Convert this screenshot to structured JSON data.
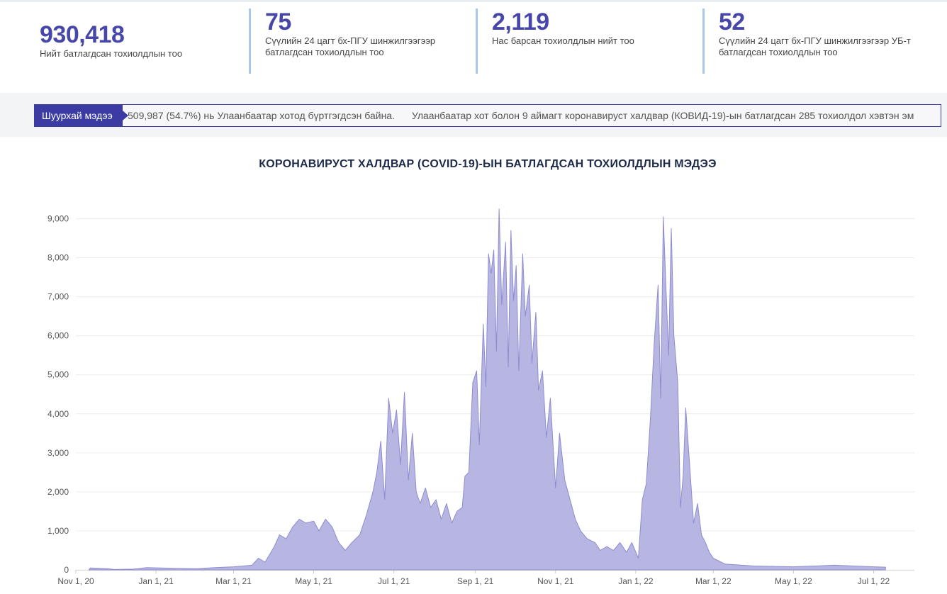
{
  "stats": [
    {
      "value": "930,418",
      "label": "Нийт батлагдсан тохиолдлын тоо"
    },
    {
      "value": "75",
      "label": "Сүүлийн 24 цагт бх-ПГУ шинжилгээгээр батлагдсан тохиолдлын тоо"
    },
    {
      "value": "2,119",
      "label": "Нас барсан тохиолдлын нийт тоо"
    },
    {
      "value": "52",
      "label": "Сүүлийн 24 цагт бх-ПГУ шинжилгээгээр УБ-т батлагдсан тохиолдлын тоо"
    }
  ],
  "news": {
    "label": "Шуурхай мэдээ",
    "items": [
      "509,987 (54.7%) нь Улаанбаатар хотод бүртгэгдсэн байна.",
      "Улаанбаатар хот болон 9 аймагт коронавируст халдвар (КОВИД-19)-ын батлагдсан 285 тохиолдол хэвтэн эм"
    ]
  },
  "colors": {
    "accent": "#4747a9",
    "area_fill": "#b3b1e0",
    "area_stroke": "#8e8cd0",
    "divider": "#a9c8ec"
  },
  "chart_data": {
    "type": "area",
    "title": "КОРОНАВИРУСТ ХАЛДВАР (COVID-19)-ЫН БАТЛАГДСАН ТОХИОЛДЛЫН МЭДЭЭ",
    "xlabel": "",
    "ylabel": "",
    "ylim": [
      0,
      9300
    ],
    "xlim": [
      "2020-11-01",
      "2022-08-01"
    ],
    "y_ticks": [
      "0",
      "1,000",
      "2,000",
      "3,000",
      "4,000",
      "5,000",
      "6,000",
      "7,000",
      "8,000",
      "9,000"
    ],
    "x_ticks": [
      {
        "date": "2020-11-01",
        "label": "Nov 1, 20"
      },
      {
        "date": "2021-01-01",
        "label": "Jan 1, 21"
      },
      {
        "date": "2021-03-01",
        "label": "Mar 1, 21"
      },
      {
        "date": "2021-05-01",
        "label": "May 1, 21"
      },
      {
        "date": "2021-07-01",
        "label": "Jul 1, 21"
      },
      {
        "date": "2021-09-01",
        "label": "Sep 1, 21"
      },
      {
        "date": "2021-11-01",
        "label": "Nov 1, 21"
      },
      {
        "date": "2022-01-01",
        "label": "Jan 1, 22"
      },
      {
        "date": "2022-03-01",
        "label": "Mar 1, 22"
      },
      {
        "date": "2022-05-01",
        "label": "May 1, 22"
      },
      {
        "date": "2022-07-01",
        "label": "Jul 1, 22"
      }
    ],
    "grid": true,
    "series": [
      {
        "points": [
          [
            "2020-11-11",
            0
          ],
          [
            "2020-11-12",
            50
          ],
          [
            "2020-11-25",
            30
          ],
          [
            "2020-11-30",
            10
          ],
          [
            "2020-12-15",
            20
          ],
          [
            "2020-12-25",
            60
          ],
          [
            "2021-01-15",
            40
          ],
          [
            "2021-02-01",
            30
          ],
          [
            "2021-02-15",
            60
          ],
          [
            "2021-03-01",
            80
          ],
          [
            "2021-03-15",
            120
          ],
          [
            "2021-03-20",
            300
          ],
          [
            "2021-03-25",
            200
          ],
          [
            "2021-04-01",
            600
          ],
          [
            "2021-04-05",
            900
          ],
          [
            "2021-04-10",
            800
          ],
          [
            "2021-04-15",
            1100
          ],
          [
            "2021-04-20",
            1300
          ],
          [
            "2021-04-25",
            1200
          ],
          [
            "2021-05-01",
            1250
          ],
          [
            "2021-05-05",
            1000
          ],
          [
            "2021-05-10",
            1300
          ],
          [
            "2021-05-15",
            1100
          ],
          [
            "2021-05-20",
            700
          ],
          [
            "2021-05-25",
            500
          ],
          [
            "2021-05-30",
            700
          ],
          [
            "2021-06-05",
            900
          ],
          [
            "2021-06-10",
            1400
          ],
          [
            "2021-06-15",
            2000
          ],
          [
            "2021-06-18",
            2500
          ],
          [
            "2021-06-21",
            3300
          ],
          [
            "2021-06-24",
            1800
          ],
          [
            "2021-06-27",
            4400
          ],
          [
            "2021-06-30",
            3500
          ],
          [
            "2021-07-03",
            4100
          ],
          [
            "2021-07-06",
            2700
          ],
          [
            "2021-07-09",
            4550
          ],
          [
            "2021-07-12",
            2300
          ],
          [
            "2021-07-15",
            3500
          ],
          [
            "2021-07-18",
            2000
          ],
          [
            "2021-07-21",
            1700
          ],
          [
            "2021-07-25",
            2100
          ],
          [
            "2021-07-29",
            1600
          ],
          [
            "2021-08-02",
            1800
          ],
          [
            "2021-08-06",
            1300
          ],
          [
            "2021-08-10",
            1700
          ],
          [
            "2021-08-14",
            1200
          ],
          [
            "2021-08-18",
            1500
          ],
          [
            "2021-08-22",
            1600
          ],
          [
            "2021-08-24",
            2400
          ],
          [
            "2021-08-27",
            2500
          ],
          [
            "2021-08-30",
            4800
          ],
          [
            "2021-09-02",
            5100
          ],
          [
            "2021-09-04",
            3200
          ],
          [
            "2021-09-07",
            6300
          ],
          [
            "2021-09-09",
            4700
          ],
          [
            "2021-09-11",
            8100
          ],
          [
            "2021-09-13",
            7600
          ],
          [
            "2021-09-15",
            8200
          ],
          [
            "2021-09-17",
            5600
          ],
          [
            "2021-09-19",
            9250
          ],
          [
            "2021-09-21",
            6800
          ],
          [
            "2021-09-24",
            8400
          ],
          [
            "2021-09-26",
            5200
          ],
          [
            "2021-09-28",
            8700
          ],
          [
            "2021-09-30",
            6900
          ],
          [
            "2021-10-02",
            7800
          ],
          [
            "2021-10-04",
            5100
          ],
          [
            "2021-10-07",
            8100
          ],
          [
            "2021-10-09",
            6500
          ],
          [
            "2021-10-12",
            7300
          ],
          [
            "2021-10-14",
            5300
          ],
          [
            "2021-10-17",
            6600
          ],
          [
            "2021-10-19",
            4600
          ],
          [
            "2021-10-22",
            5100
          ],
          [
            "2021-10-25",
            3400
          ],
          [
            "2021-10-28",
            4400
          ],
          [
            "2021-11-01",
            2100
          ],
          [
            "2021-11-04",
            3500
          ],
          [
            "2021-11-08",
            2300
          ],
          [
            "2021-11-12",
            1800
          ],
          [
            "2021-11-16",
            1300
          ],
          [
            "2021-11-20",
            1000
          ],
          [
            "2021-11-25",
            800
          ],
          [
            "2021-12-01",
            700
          ],
          [
            "2021-12-05",
            500
          ],
          [
            "2021-12-10",
            600
          ],
          [
            "2021-12-15",
            500
          ],
          [
            "2021-12-20",
            700
          ],
          [
            "2021-12-25",
            450
          ],
          [
            "2021-12-29",
            700
          ],
          [
            "2022-01-03",
            300
          ],
          [
            "2022-01-06",
            1800
          ],
          [
            "2022-01-09",
            2200
          ],
          [
            "2022-01-12",
            3800
          ],
          [
            "2022-01-15",
            5800
          ],
          [
            "2022-01-18",
            7300
          ],
          [
            "2022-01-20",
            4400
          ],
          [
            "2022-01-22",
            9050
          ],
          [
            "2022-01-24",
            7200
          ],
          [
            "2022-01-26",
            5500
          ],
          [
            "2022-01-28",
            8750
          ],
          [
            "2022-01-30",
            6000
          ],
          [
            "2022-02-02",
            4800
          ],
          [
            "2022-02-04",
            1600
          ],
          [
            "2022-02-06",
            2400
          ],
          [
            "2022-02-08",
            4150
          ],
          [
            "2022-02-11",
            2700
          ],
          [
            "2022-02-14",
            1200
          ],
          [
            "2022-02-17",
            1700
          ],
          [
            "2022-02-20",
            900
          ],
          [
            "2022-02-23",
            700
          ],
          [
            "2022-02-26",
            450
          ],
          [
            "2022-03-01",
            300
          ],
          [
            "2022-03-10",
            150
          ],
          [
            "2022-04-01",
            100
          ],
          [
            "2022-05-01",
            80
          ],
          [
            "2022-06-01",
            120
          ],
          [
            "2022-07-01",
            80
          ],
          [
            "2022-07-10",
            70
          ]
        ]
      }
    ]
  }
}
